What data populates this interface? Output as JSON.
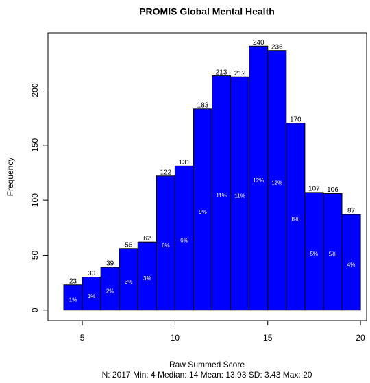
{
  "chart_data": {
    "type": "histogram",
    "title": "PROMIS Global Mental Health",
    "xlabel": "Raw Summed Score",
    "ylabel": "Frequency",
    "subtitle": "N: 2017 Min: 4  Median: 14  Mean: 13.93  SD: 3.43  Max: 20",
    "bins": [
      4,
      5,
      6,
      7,
      8,
      9,
      10,
      11,
      12,
      13,
      14,
      15,
      16,
      17,
      18,
      19,
      20
    ],
    "values": [
      23,
      30,
      39,
      56,
      62,
      122,
      131,
      183,
      213,
      212,
      240,
      236,
      170,
      107,
      106,
      87
    ],
    "percent_labels": [
      "1%",
      "1%",
      "2%",
      "3%",
      "3%",
      "6%",
      "6%",
      "9%",
      "11%",
      "11%",
      "12%",
      "12%",
      "8%",
      "5%",
      "5%",
      "4%"
    ],
    "color": "#0000ff",
    "xlim": [
      3.15,
      20.33
    ],
    "xticks": [
      5,
      10,
      15,
      20
    ],
    "ylim": [
      -9.5,
      252
    ],
    "yticks": [
      0,
      50,
      100,
      150,
      200
    ]
  }
}
